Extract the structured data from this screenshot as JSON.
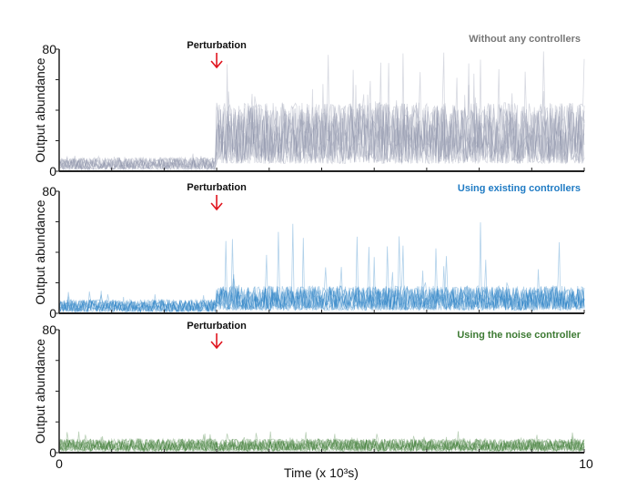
{
  "chart_data": [
    {
      "type": "line",
      "title": "Without any controllers",
      "ylabel": "Output abundance",
      "xlim": [
        0,
        10
      ],
      "ylim": [
        0,
        80
      ],
      "y_tick_labels": [
        "0",
        "80"
      ],
      "y_ticks": [
        0,
        20,
        40,
        60,
        80
      ],
      "annotation": {
        "text": "Perturbation",
        "x": 3
      },
      "color": "#8c93a8",
      "grid": false,
      "series": [
        {
          "segment": "before perturbation",
          "x_range": [
            0,
            3
          ],
          "mean": 5,
          "max": 12
        },
        {
          "segment": "after perturbation",
          "x_range": [
            3,
            10
          ],
          "mean": 25,
          "max": 80
        }
      ]
    },
    {
      "type": "line",
      "title": "Using existing controllers",
      "ylabel": "Output abundance",
      "xlim": [
        0,
        10
      ],
      "ylim": [
        0,
        80
      ],
      "y_tick_labels": [
        "0",
        "80"
      ],
      "y_ticks": [
        0,
        20,
        40,
        60,
        80
      ],
      "annotation": {
        "text": "Perturbation",
        "x": 3
      },
      "color": "#1f7bc4",
      "grid": false,
      "series": [
        {
          "segment": "before perturbation",
          "x_range": [
            0,
            3
          ],
          "mean": 5,
          "max": 15
        },
        {
          "segment": "after perturbation",
          "x_range": [
            3,
            10
          ],
          "mean": 10,
          "max": 60
        }
      ]
    },
    {
      "type": "line",
      "title": "Using the noise controller",
      "ylabel": "Output abundance",
      "xlabel": "Time (x 10³s)",
      "xlim": [
        0,
        10
      ],
      "x_tick_labels": [
        "0",
        "10"
      ],
      "ylim": [
        0,
        80
      ],
      "y_tick_labels": [
        "0",
        "80"
      ],
      "y_ticks": [
        0,
        20,
        40,
        60,
        80
      ],
      "annotation": {
        "text": "Perturbation",
        "x": 3
      },
      "color": "#3d7a33",
      "grid": false,
      "series": [
        {
          "segment": "before perturbation",
          "x_range": [
            0,
            3
          ],
          "mean": 5,
          "max": 14
        },
        {
          "segment": "after perturbation",
          "x_range": [
            3,
            10
          ],
          "mean": 5,
          "max": 14
        }
      ]
    }
  ]
}
